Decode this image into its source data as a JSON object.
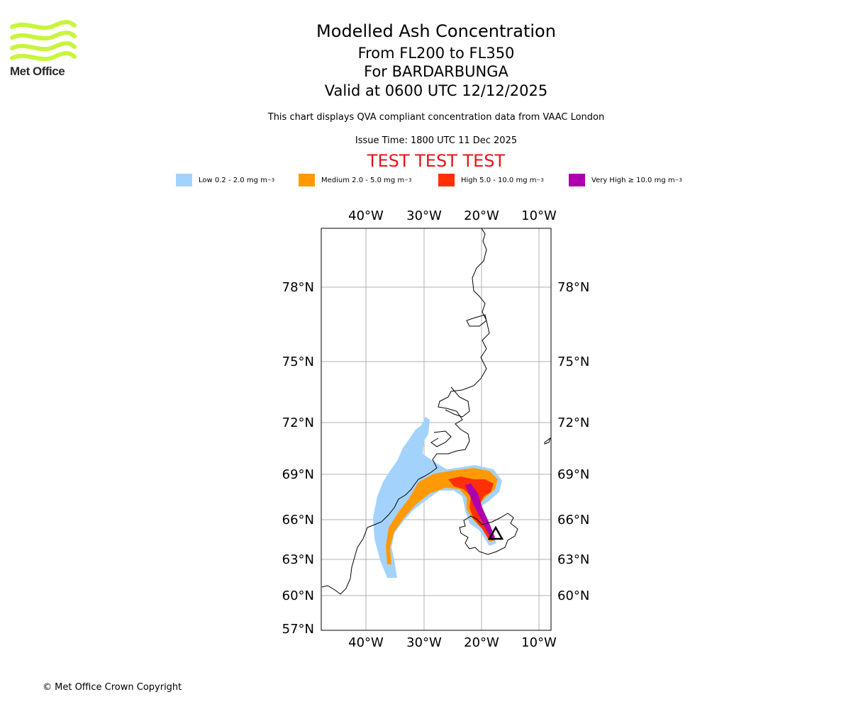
{
  "logo": {
    "name": "Met Office",
    "colors": {
      "waves": "#c8f53c",
      "text": "#2a2a2a"
    }
  },
  "header": {
    "title": "Modelled Ash Concentration",
    "levels": "From FL200 to FL350",
    "volcano": "For BARDARBUNGA",
    "valid": "Valid at 0600 UTC 12/12/2025",
    "subtitle": "This chart displays QVA compliant concentration data from VAAC London",
    "issue_time": "Issue Time: 1800 UTC 11 Dec 2025",
    "test_banner": "TEST TEST TEST"
  },
  "legend": [
    {
      "label": "Low 0.2 - 2.0 mg m",
      "sup": "−3",
      "color": "#a3d3fc"
    },
    {
      "label": "Medium 2.0 - 5.0 mg m",
      "sup": "−3",
      "color": "#ff9a06"
    },
    {
      "label": "High 5.0 - 10.0 mg m",
      "sup": "−3",
      "color": "#ff2f06"
    },
    {
      "label": "Very High  ≥  10.0 mg m",
      "sup": "−3",
      "color": "#ad00ad"
    }
  ],
  "map": {
    "lon_labels": [
      "40°W",
      "30°W",
      "20°W",
      "10°W"
    ],
    "lat_labels": [
      "78°N",
      "75°N",
      "72°N",
      "69°N",
      "66°N",
      "63°N",
      "60°N",
      "57°N"
    ],
    "grid_color": "#b0b0b0",
    "volcano_marker": "triangle"
  },
  "footer": {
    "copyright": "© Met Office Crown Copyright"
  }
}
